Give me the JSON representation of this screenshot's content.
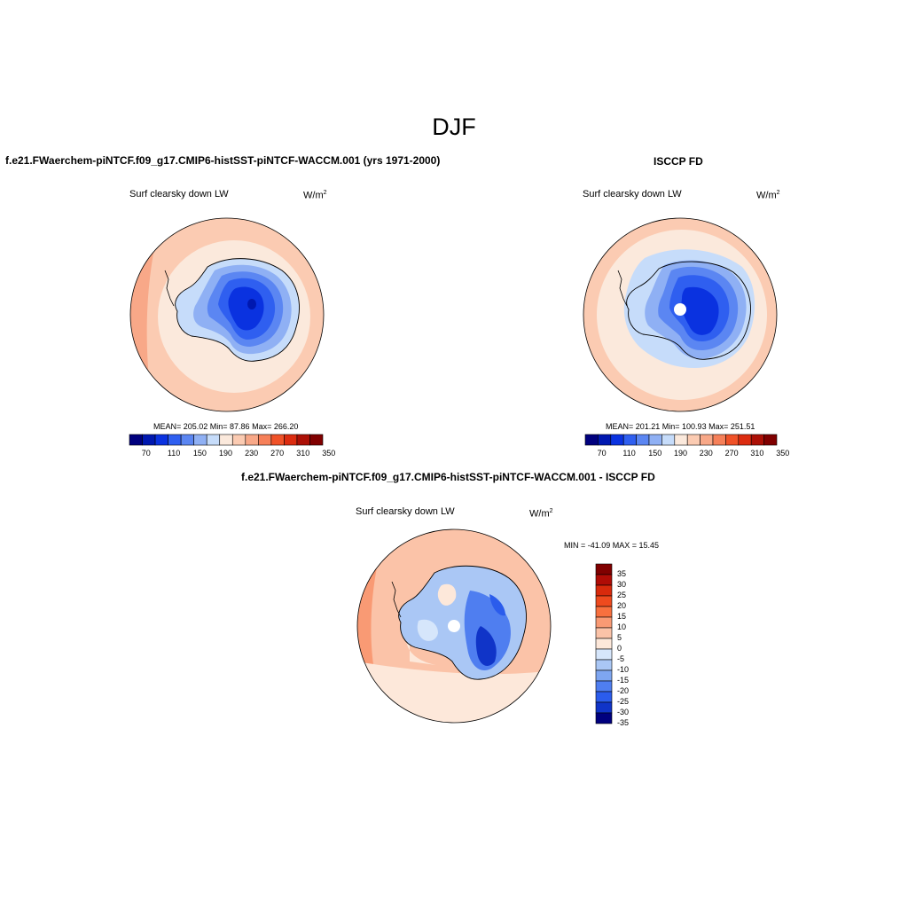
{
  "page_title": "DJF",
  "panels": [
    {
      "title": "f.e21.FWaerchem-piNTCF.f09_g17.CMIP6-histSST-piNTCF-WACCM.001 (yrs 1971-2000)",
      "variable": "Surf clearsky down LW",
      "units": "W/m",
      "units_exp": "2",
      "stats": "MEAN= 205.02  Min=  87.86  Max= 266.20",
      "colorbar_ticks": [
        "70",
        "110",
        "150",
        "190",
        "230",
        "270",
        "310",
        "350"
      ]
    },
    {
      "title": "ISCCP FD",
      "variable": "Surf clearsky down LW",
      "units": "W/m",
      "units_exp": "2",
      "stats": "MEAN= 201.21  Min= 100.93  Max= 251.51",
      "colorbar_ticks": [
        "70",
        "110",
        "150",
        "190",
        "230",
        "270",
        "310",
        "350"
      ]
    },
    {
      "title": "f.e21.FWaerchem-piNTCF.f09_g17.CMIP6-histSST-piNTCF-WACCM.001 - ISCCP FD",
      "variable": "Surf clearsky down LW",
      "units": "W/m",
      "units_exp": "2",
      "stats": "MIN = -41.09 MAX =  15.45",
      "colorbar_ticks": [
        "35",
        "30",
        "25",
        "20",
        "15",
        "10",
        "5",
        "0",
        "-5",
        "-10",
        "-15",
        "-20",
        "-25",
        "-30",
        "-35"
      ]
    }
  ],
  "colors": {
    "abs_scale": [
      "#00007e",
      "#0018b0",
      "#0a32e0",
      "#2f5ff0",
      "#5b86f2",
      "#8fb0f4",
      "#c6dcfa",
      "#fbe9dc",
      "#fbcbb2",
      "#f8a888",
      "#f68059",
      "#f05228",
      "#dc2c10",
      "#ac1006",
      "#800000"
    ],
    "diff_scale": [
      "#800000",
      "#b00c06",
      "#d82a0c",
      "#ee4a1e",
      "#f8703e",
      "#f99a74",
      "#fbc3a8",
      "#fde8da",
      "#d6e6fb",
      "#aac7f5",
      "#7ea6f1",
      "#4f7ef0",
      "#2b5cec",
      "#1034c8",
      "#00007e"
    ]
  }
}
